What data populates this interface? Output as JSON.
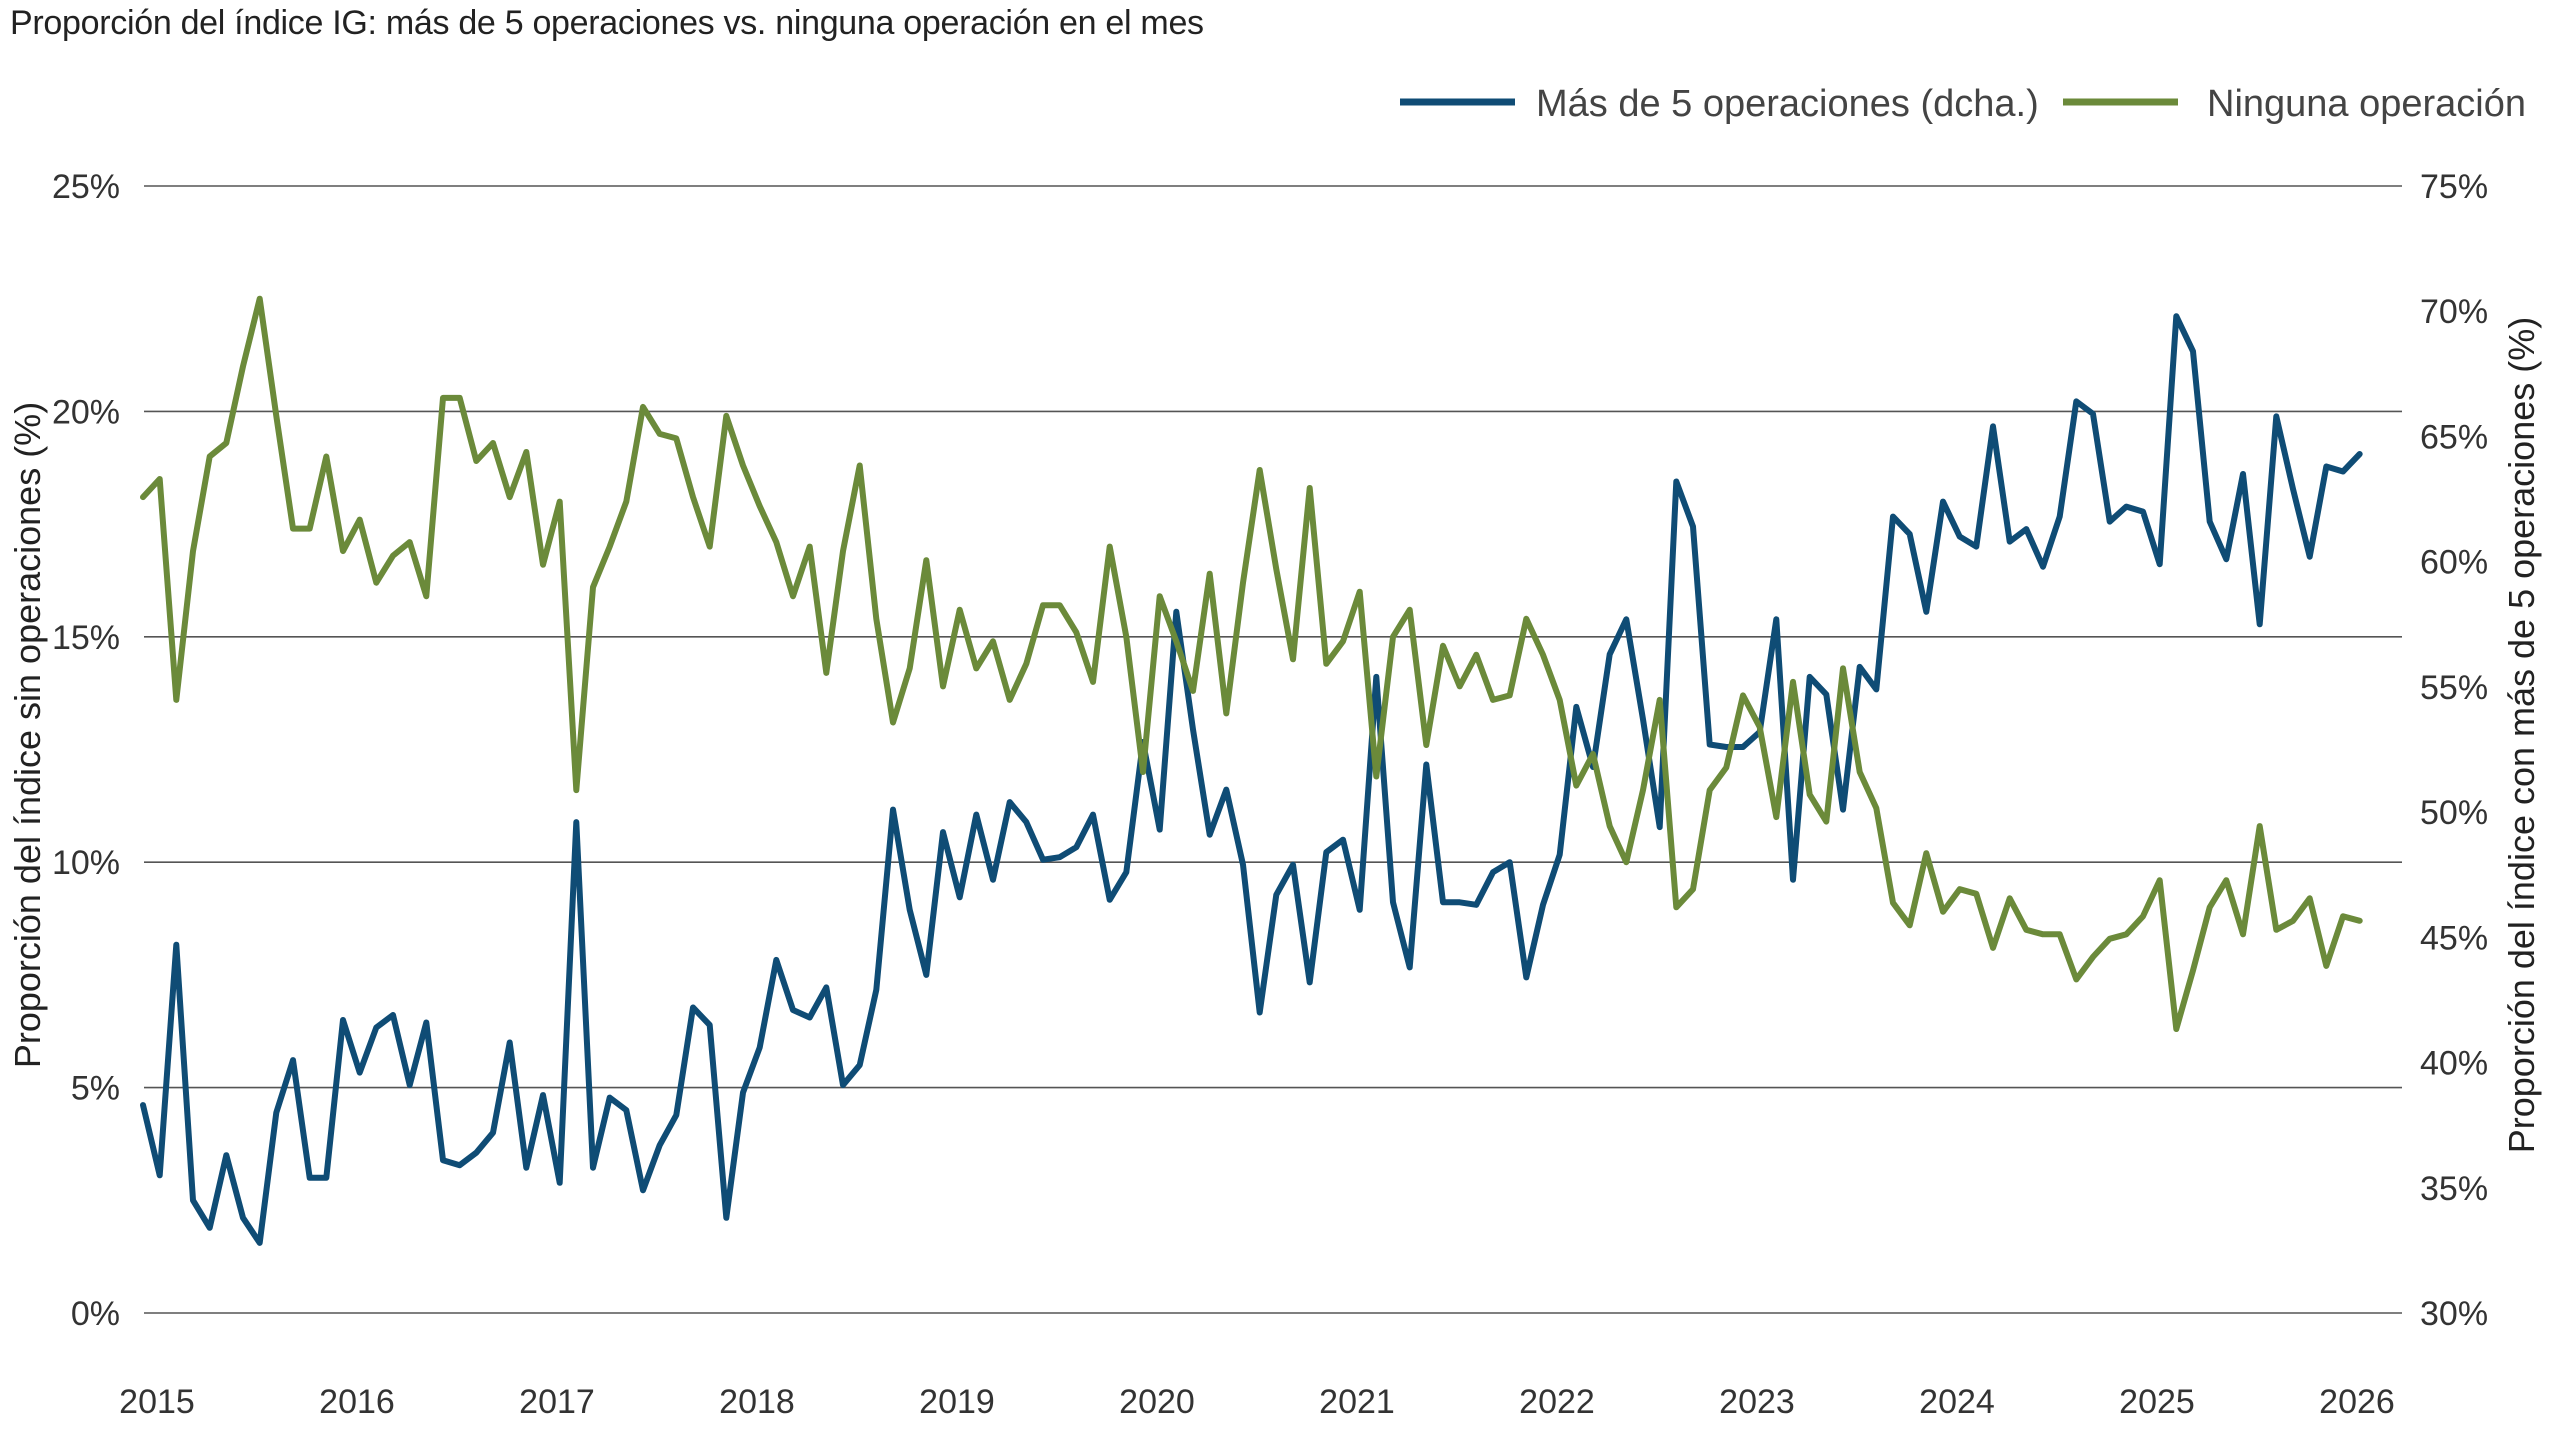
{
  "chart_data": {
    "type": "line",
    "title": "Proporción del índice IG: más de 5 operaciones vs. ninguna operación en el mes",
    "ylabel_left": "Proporción del índice sin operaciones (%)",
    "ylabel_right": "Proporción del índice con más de 5 operaciones (%)",
    "ylim_left": [
      0,
      25
    ],
    "ylim_right": [
      30,
      75
    ],
    "yticks_left": [
      "0%",
      "5%",
      "10%",
      "15%",
      "20%",
      "25%"
    ],
    "yticks_right": [
      "30%",
      "35%",
      "40%",
      "45%",
      "50%",
      "55%",
      "60%",
      "65%",
      "70%",
      "75%"
    ],
    "x_start": "2015-01",
    "x_end": "2026-04",
    "xticks": [
      "2015",
      "2016",
      "2017",
      "2018",
      "2019",
      "2020",
      "2021",
      "2022",
      "2023",
      "2024",
      "2025",
      "2026"
    ],
    "grid": "horizontal",
    "legend_position": "top-right",
    "series": [
      {
        "name": "Más de 5 operaciones (dcha.)",
        "axis": "right",
        "color": "#0f4c75",
        "x_unit": "month",
        "values": [
          38.3,
          35.5,
          44.7,
          34.5,
          33.4,
          36.3,
          33.8,
          32.8,
          38.0,
          40.1,
          35.4,
          35.4,
          41.7,
          39.6,
          41.4,
          41.9,
          39.1,
          41.6,
          36.1,
          35.9,
          36.4,
          37.2,
          40.8,
          35.8,
          38.7,
          35.2,
          49.6,
          35.8,
          38.6,
          38.1,
          34.9,
          36.7,
          37.9,
          42.2,
          41.5,
          33.8,
          38.8,
          40.6,
          44.1,
          42.1,
          41.8,
          43.0,
          39.1,
          39.9,
          42.9,
          50.1,
          46.1,
          43.5,
          49.2,
          46.6,
          49.9,
          47.3,
          50.4,
          49.6,
          48.1,
          48.2,
          48.6,
          49.9,
          46.5,
          47.6,
          52.8,
          49.3,
          58.0,
          53.3,
          49.1,
          50.9,
          47.9,
          42.0,
          46.7,
          47.9,
          43.2,
          48.4,
          48.9,
          46.1,
          55.4,
          46.4,
          43.8,
          51.9,
          46.4,
          46.4,
          46.3,
          47.6,
          48.0,
          43.4,
          46.3,
          48.3,
          54.2,
          51.8,
          56.3,
          57.7,
          53.7,
          49.4,
          63.2,
          61.4,
          52.7,
          52.6,
          52.6,
          53.2,
          57.7,
          47.3,
          55.4,
          54.7,
          50.1,
          55.8,
          54.9,
          61.8,
          61.1,
          58.0,
          62.4,
          61.0,
          60.6,
          65.4,
          60.8,
          61.3,
          59.8,
          61.8,
          66.4,
          65.9,
          61.6,
          62.2,
          62.0,
          59.9,
          69.8,
          68.4,
          61.6,
          60.1,
          63.5,
          57.5,
          65.8,
          62.9,
          60.2,
          63.8,
          63.6,
          64.3
        ]
      },
      {
        "name": "Ninguna operación",
        "axis": "left",
        "color": "#6b8a3a",
        "x_unit": "month",
        "values": [
          18.1,
          18.5,
          13.6,
          16.9,
          19.0,
          19.3,
          21.0,
          22.5,
          19.9,
          17.4,
          17.4,
          19.0,
          16.9,
          17.6,
          16.2,
          16.8,
          17.1,
          15.9,
          20.3,
          20.3,
          18.9,
          19.3,
          18.1,
          19.1,
          16.6,
          18.0,
          11.6,
          16.1,
          17.0,
          18.0,
          20.1,
          19.5,
          19.4,
          18.1,
          17.0,
          19.9,
          18.8,
          17.9,
          17.1,
          15.9,
          17.0,
          14.2,
          16.9,
          18.8,
          15.4,
          13.1,
          14.3,
          16.7,
          13.9,
          15.6,
          14.3,
          14.9,
          13.6,
          14.4,
          15.7,
          15.7,
          15.1,
          14.0,
          17.0,
          15.0,
          12.0,
          15.9,
          14.9,
          13.8,
          16.4,
          13.3,
          16.2,
          18.7,
          16.5,
          14.5,
          18.3,
          14.4,
          14.9,
          16.0,
          11.9,
          15.0,
          15.6,
          12.6,
          14.8,
          13.9,
          14.6,
          13.6,
          13.7,
          15.4,
          14.6,
          13.6,
          11.7,
          12.4,
          10.8,
          10.0,
          11.6,
          13.6,
          9.0,
          9.4,
          11.6,
          12.1,
          13.7,
          13.0,
          11.0,
          14.0,
          11.5,
          10.9,
          14.3,
          12.0,
          11.2,
          9.1,
          8.6,
          10.2,
          8.9,
          9.4,
          9.3,
          8.1,
          9.2,
          8.5,
          8.4,
          8.4,
          7.4,
          7.9,
          8.3,
          8.4,
          8.8,
          9.6,
          6.3,
          7.6,
          9.0,
          9.6,
          8.4,
          10.8,
          8.5,
          8.7,
          9.2,
          7.7,
          8.8,
          8.7
        ]
      }
    ]
  }
}
